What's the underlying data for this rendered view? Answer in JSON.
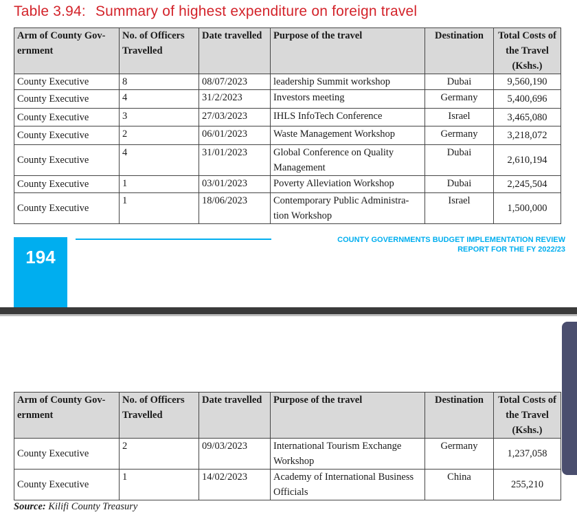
{
  "title": {
    "number": "Table 3.94:",
    "text": "Summary of highest expenditure on foreign travel"
  },
  "headers": {
    "arm": "Arm of County Gov-ernment",
    "officers": "No. of Officers Travelled",
    "date": "Date travelled",
    "purpose": "Purpose of the travel",
    "destination": "Destination",
    "cost": "Total Costs of the Travel (Kshs.)"
  },
  "table1": [
    {
      "arm": "County Executive",
      "officers": "8",
      "date": "08/07/2023",
      "purpose": " leadership Summit workshop",
      "destination": "Dubai",
      "cost": "9,560,190"
    },
    {
      "arm": "County Executive",
      "officers": "4",
      "date": "31/2/2023",
      "purpose": "Investors meeting",
      "destination": "Germany",
      "cost": "5,400,696"
    },
    {
      "arm": "County Executive",
      "officers": "3",
      "date": "27/03/2023",
      "purpose": "IHLS InfoTech Conference",
      "destination": "Israel",
      "cost": "3,465,080"
    },
    {
      "arm": "County Executive",
      "officers": "2",
      "date": "06/01/2023",
      "purpose": "Waste Management Workshop",
      "destination": "Germany",
      "cost": "3,218,072"
    },
    {
      "arm": "County Executive",
      "officers": "4",
      "date": "31/01/2023",
      "purpose": "Global Conference on Quality Management",
      "destination": "Dubai",
      "cost": "2,610,194"
    },
    {
      "arm": "County Executive",
      "officers": "1",
      "date": "03/01/2023",
      "purpose": "Poverty Alleviation Workshop",
      "destination": "Dubai",
      "cost": "2,245,504"
    },
    {
      "arm": "County Executive",
      "officers": "1",
      "date": "18/06/2023",
      "purpose": "Contemporary Public Administra-tion Workshop",
      "destination": "Israel",
      "cost": "1,500,000"
    }
  ],
  "table2": [
    {
      "arm": "County Executive",
      "officers": "2",
      "date": "09/03/2023",
      "purpose": "International Tourism Exchange Workshop",
      "destination": "Germany",
      "cost": "1,237,058"
    },
    {
      "arm": "County Executive",
      "officers": "1",
      "date": "14/02/2023",
      "purpose": "Academy of International Business Officials",
      "destination": "China",
      "cost": "255,210"
    }
  ],
  "footer": {
    "page_number": "194",
    "report_line1": "COUNTY GOVERNMENTS BUDGET IMPLEMENTATION REVIEW",
    "report_line2": "REPORT FOR THE FY 2022/23"
  },
  "source": {
    "label": "Source:",
    "text": "Kilifi County Treasury"
  },
  "colors": {
    "title_red": "#d3232a",
    "accent_blue": "#00aeef",
    "header_gray": "#d9d9d9",
    "side_tab": "#4a4e6e"
  }
}
